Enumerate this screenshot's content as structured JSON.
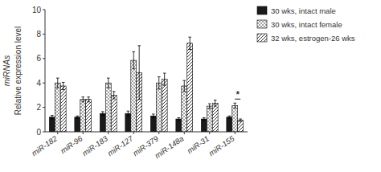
{
  "chart_data": {
    "type": "bar",
    "ylabel": "Relative expression level",
    "ylabel_outer": "miRNAs",
    "categories": [
      "miR-182",
      "miR-96",
      "miR-183",
      "miR-127",
      "miR-379",
      "miR-148a",
      "miR-31",
      "miR-155"
    ],
    "series": [
      {
        "name": "30 wks, intact male",
        "color": "#1a1a1a",
        "values": [
          1.2,
          1.2,
          1.5,
          1.5,
          1.3,
          1.05,
          1.05,
          1.2
        ],
        "errors": [
          0.15,
          0.1,
          0.15,
          0.2,
          0.15,
          0.1,
          0.1,
          0.1
        ]
      },
      {
        "name": "30 wks, intact female",
        "color": "#ffffff",
        "values": [
          4.0,
          2.65,
          4.0,
          5.85,
          4.0,
          3.75,
          2.1,
          2.15
        ],
        "errors": [
          0.4,
          0.2,
          0.4,
          0.7,
          0.5,
          0.45,
          0.2,
          0.2
        ]
      },
      {
        "name": "32 wks, estrogen-26 wks",
        "color": "#ffffff",
        "values": [
          3.75,
          2.65,
          3.0,
          4.85,
          4.3,
          7.25,
          2.35,
          0.95
        ],
        "errors": [
          0.3,
          0.2,
          0.3,
          2.2,
          0.5,
          0.5,
          0.25,
          0.1
        ]
      }
    ],
    "annotations": [
      {
        "text": "*",
        "category": "miR-155",
        "series": [
          "30 wks, intact female",
          "32 wks, estrogen-26 wks"
        ]
      }
    ],
    "ylim": [
      0,
      10
    ],
    "yticks": [
      0,
      2,
      4,
      6,
      8,
      10
    ],
    "grid": false,
    "legend": "right"
  }
}
